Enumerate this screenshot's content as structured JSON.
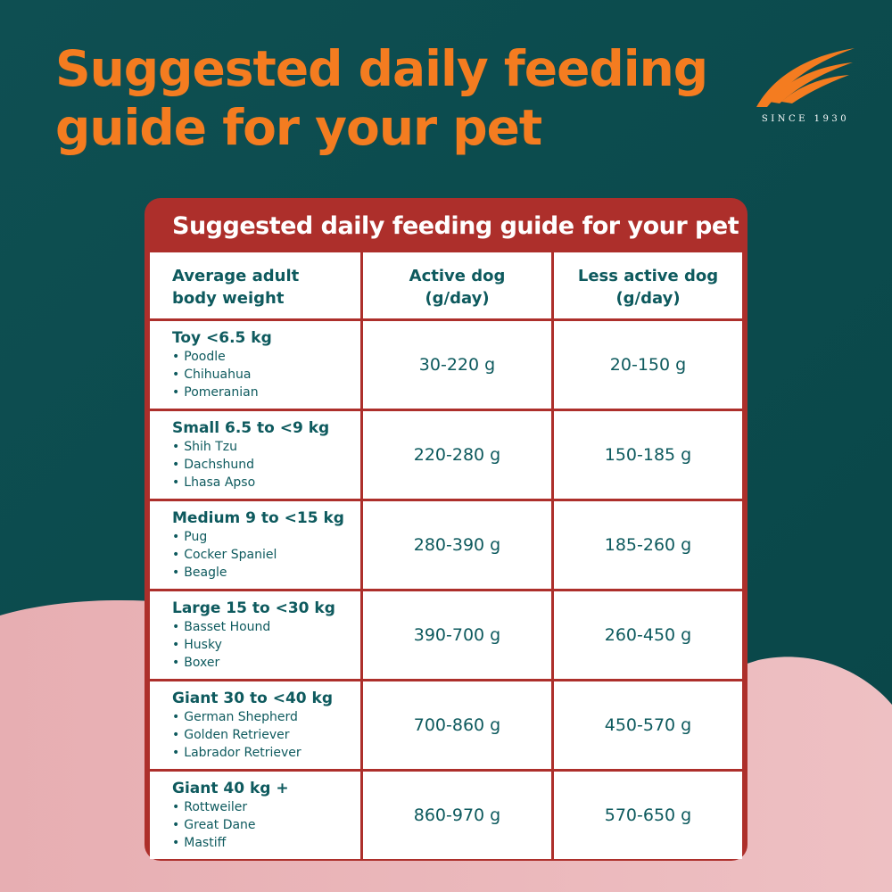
{
  "headline": {
    "line1": "Suggested daily feeding",
    "line2": "guide for your pet"
  },
  "logo": {
    "icon": "flame-swoosh-icon",
    "tagline": "SINCE 1930"
  },
  "table": {
    "title": "Suggested daily feeding guide for your pet",
    "headers": [
      {
        "line1": "Average adult",
        "line2": "body weight"
      },
      {
        "line1": "Active dog",
        "line2": "(g/day)"
      },
      {
        "line1": "Less active dog",
        "line2": "(g/day)"
      }
    ],
    "rows": [
      {
        "weight": "Toy <6.5 kg",
        "breeds": [
          "Poodle",
          "Chihuahua",
          "Pomeranian"
        ],
        "active": "30-220 g",
        "less_active": "20-150 g"
      },
      {
        "weight": "Small 6.5 to <9 kg",
        "breeds": [
          "Shih Tzu",
          "Dachshund",
          "Lhasa Apso"
        ],
        "active": "220-280 g",
        "less_active": "150-185 g"
      },
      {
        "weight": "Medium 9 to <15 kg",
        "breeds": [
          "Pug",
          "Cocker Spaniel",
          "Beagle"
        ],
        "active": "280-390 g",
        "less_active": "185-260 g"
      },
      {
        "weight": "Large 15 to <30 kg",
        "breeds": [
          "Basset Hound",
          "Husky",
          "Boxer"
        ],
        "active": "390-700 g",
        "less_active": "260-450 g"
      },
      {
        "weight": "Giant 30 to <40 kg",
        "breeds": [
          "German Shepherd",
          "Golden Retriever",
          "Labrador Retriever"
        ],
        "active": "700-860 g",
        "less_active": "450-570 g"
      },
      {
        "weight": "Giant 40 kg +",
        "breeds": [
          "Rottweiler",
          "Great Dane",
          "Mastiff"
        ],
        "active": "860-970 g",
        "less_active": "570-650 g"
      }
    ]
  },
  "colors": {
    "background_top": "#0c4b4d",
    "background_bottom": "#e9b4b7",
    "accent_orange": "#f47c20",
    "table_frame_red": "#ad2f2b",
    "table_text_teal": "#0e5a5e"
  }
}
